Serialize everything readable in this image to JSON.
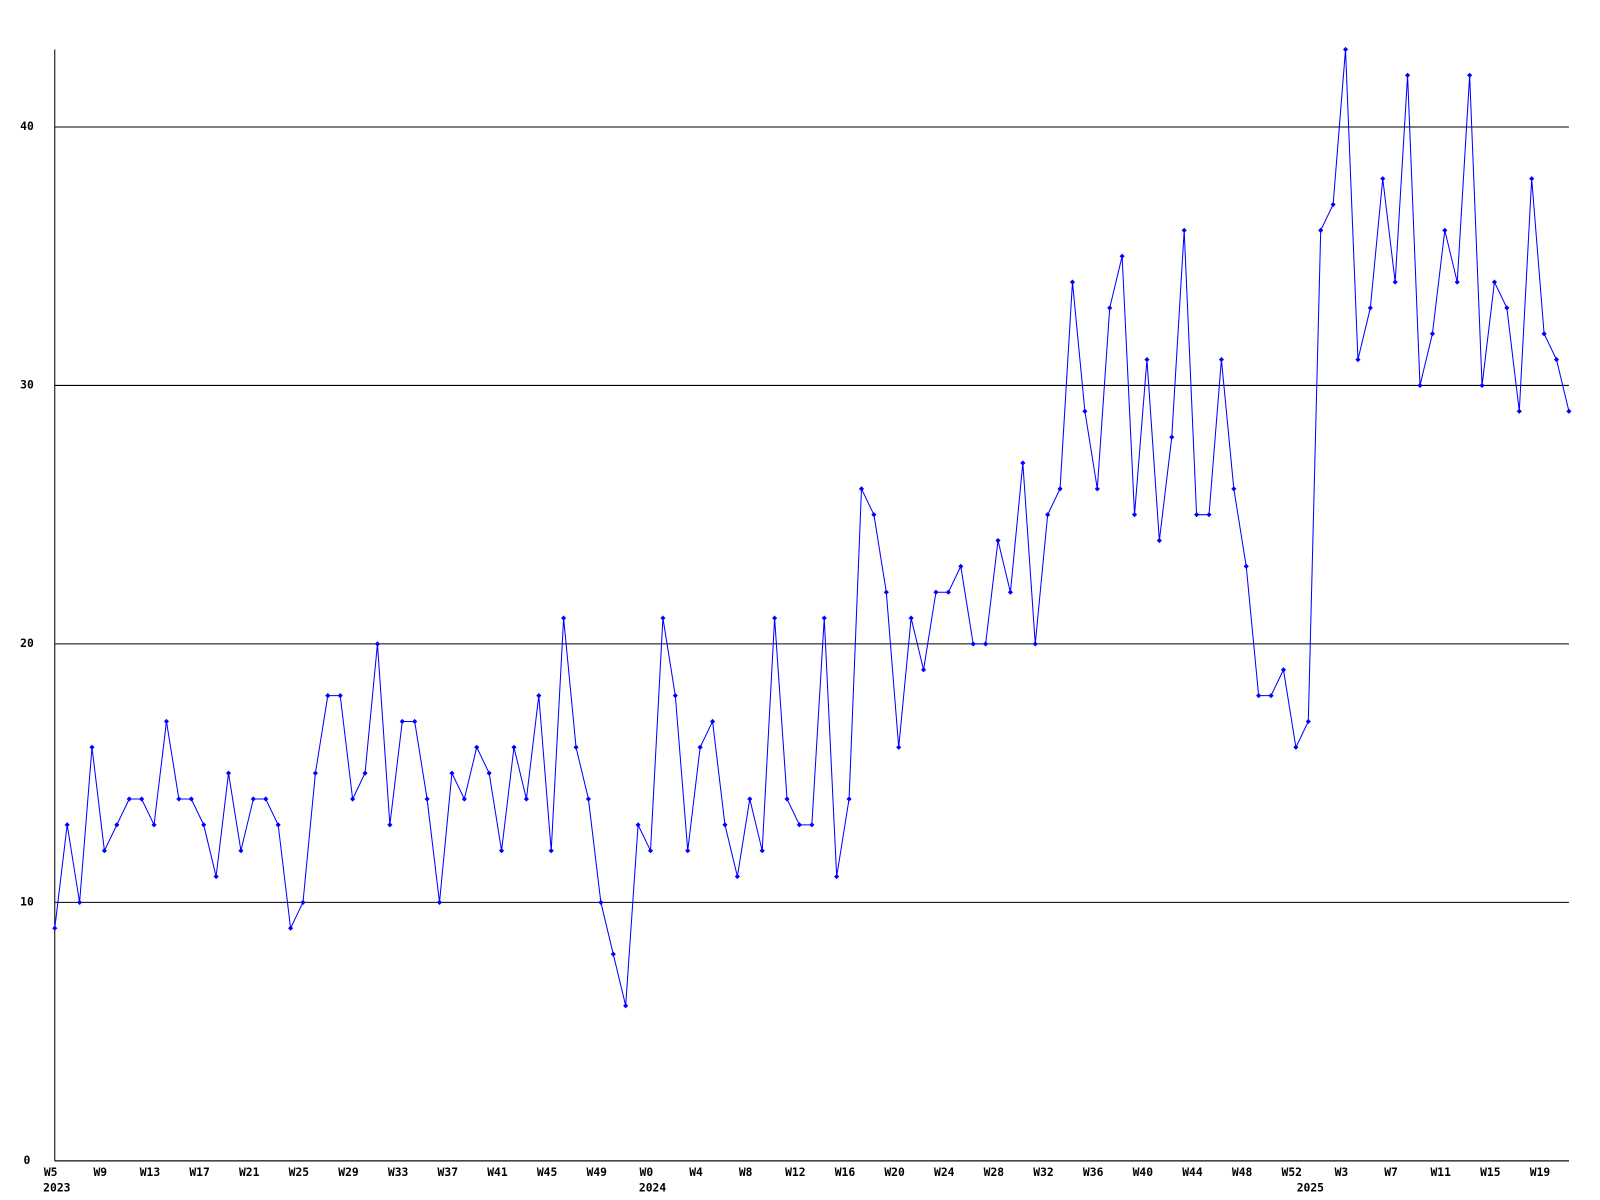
{
  "chart_data": {
    "type": "line",
    "color": "#0000ff",
    "grid": true,
    "ylim": [
      0,
      43
    ],
    "yticks": [
      0,
      10,
      20,
      30,
      40
    ],
    "categories": [
      "W5",
      null,
      null,
      null,
      "W9",
      null,
      null,
      null,
      "W13",
      null,
      null,
      null,
      "W17",
      null,
      null,
      null,
      "W21",
      null,
      null,
      null,
      "W25",
      null,
      null,
      null,
      "W29",
      null,
      null,
      null,
      "W33",
      null,
      null,
      null,
      "W37",
      null,
      null,
      null,
      "W41",
      null,
      null,
      null,
      "W45",
      null,
      null,
      null,
      "W49",
      null,
      null,
      null,
      "W0",
      null,
      null,
      null,
      "W4",
      null,
      null,
      null,
      "W8",
      null,
      null,
      null,
      "W12",
      null,
      null,
      null,
      "W16",
      null,
      null,
      null,
      "W20",
      null,
      null,
      null,
      "W24",
      null,
      null,
      null,
      "W28",
      null,
      null,
      null,
      "W32",
      null,
      null,
      null,
      "W36",
      null,
      null,
      null,
      "W40",
      null,
      null,
      null,
      "W44",
      null,
      null,
      null,
      "W48",
      null,
      null,
      null,
      "W52",
      null,
      null,
      null,
      "W3",
      null,
      null,
      null,
      "W7",
      null,
      null,
      null,
      "W11",
      null,
      null,
      null,
      "W15",
      null,
      null,
      null,
      "W19",
      null,
      null
    ],
    "year_labels": [
      "2023",
      null,
      null,
      null,
      null,
      null,
      null,
      null,
      null,
      null,
      null,
      null,
      null,
      null,
      null,
      null,
      null,
      null,
      null,
      null,
      null,
      null,
      null,
      null,
      null,
      null,
      null,
      null,
      null,
      null,
      null,
      null,
      null,
      null,
      null,
      null,
      null,
      null,
      null,
      null,
      null,
      null,
      null,
      null,
      null,
      null,
      null,
      null,
      "2024",
      null,
      null,
      null,
      null,
      null,
      null,
      null,
      null,
      null,
      null,
      null,
      null,
      null,
      null,
      null,
      null,
      null,
      null,
      null,
      null,
      null,
      null,
      null,
      null,
      null,
      null,
      null,
      null,
      null,
      null,
      null,
      null,
      null,
      null,
      null,
      null,
      null,
      null,
      null,
      null,
      null,
      null,
      null,
      null,
      null,
      null,
      null,
      null,
      null,
      null,
      null,
      null,
      "2025",
      null,
      null,
      null,
      null,
      null,
      null,
      null,
      null,
      null,
      null,
      null,
      null,
      null,
      null,
      null,
      null,
      null,
      null,
      null,
      null,
      null
    ],
    "values": [
      9,
      13,
      10,
      16,
      12,
      13,
      14,
      14,
      13,
      17,
      14,
      14,
      13,
      11,
      15,
      12,
      14,
      14,
      13,
      9,
      10,
      15,
      18,
      18,
      14,
      15,
      20,
      13,
      17,
      17,
      14,
      10,
      15,
      14,
      16,
      15,
      12,
      16,
      14,
      18,
      12,
      21,
      16,
      14,
      10,
      8,
      6,
      13,
      12,
      21,
      18,
      12,
      16,
      17,
      13,
      11,
      14,
      12,
      21,
      14,
      13,
      13,
      21,
      11,
      14,
      26,
      25,
      22,
      16,
      21,
      19,
      22,
      22,
      23,
      20,
      20,
      24,
      22,
      27,
      20,
      25,
      26,
      34,
      29,
      26,
      33,
      35,
      25,
      31,
      24,
      28,
      36,
      25,
      25,
      31,
      26,
      23,
      18,
      18,
      19,
      16,
      17,
      36,
      37,
      43,
      31,
      33,
      38,
      34,
      42,
      30,
      32,
      36,
      34,
      42,
      30,
      34,
      33,
      29,
      38,
      32,
      31,
      29
    ]
  }
}
